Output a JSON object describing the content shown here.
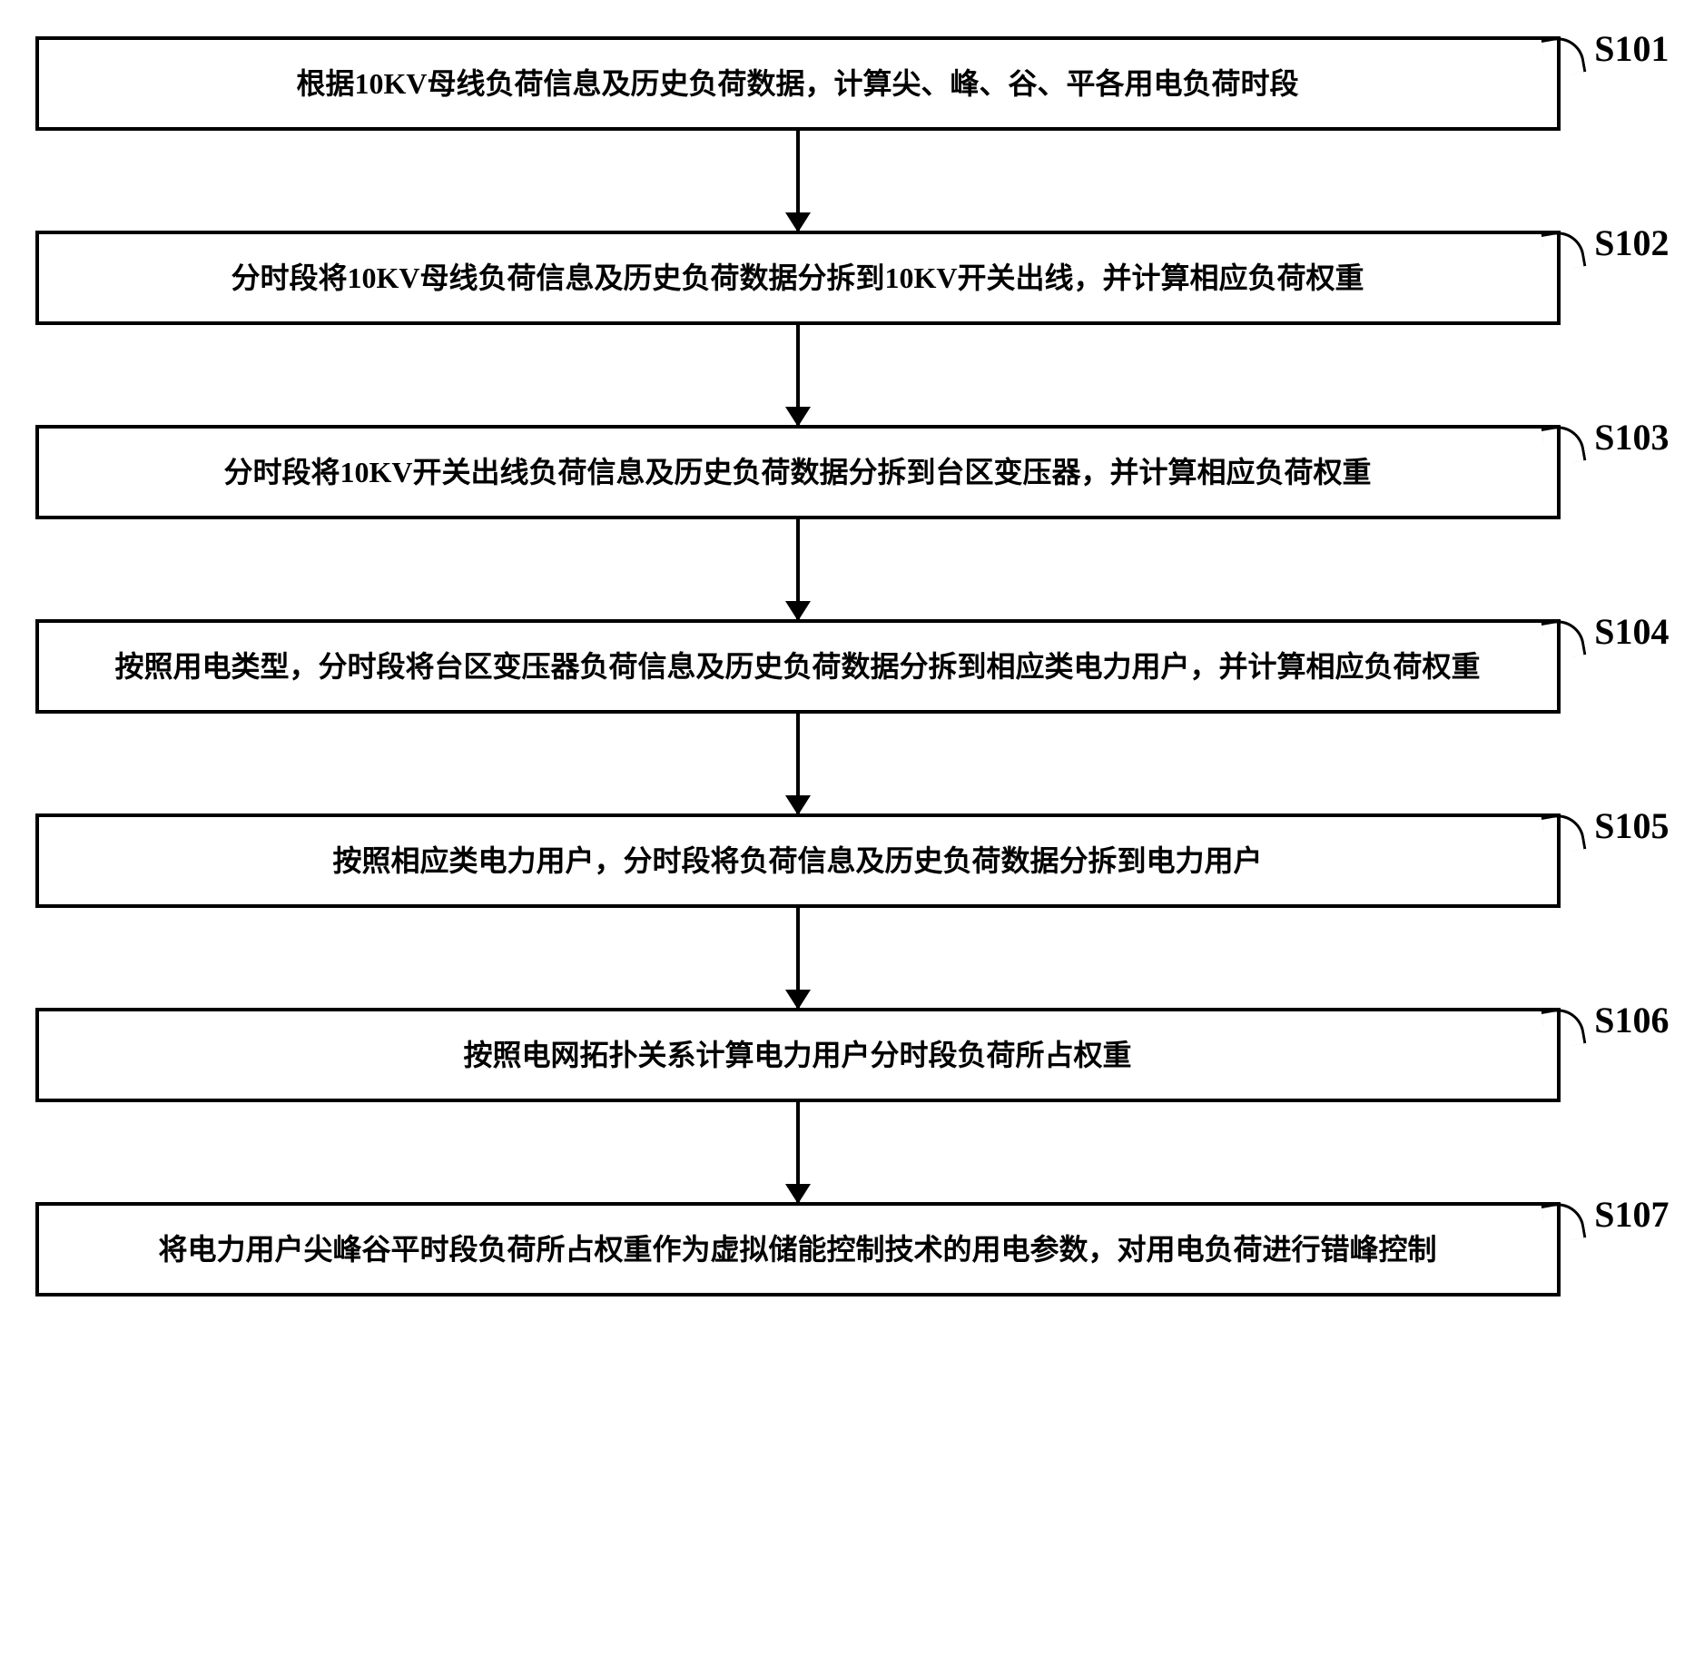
{
  "diagram": {
    "type": "flowchart",
    "direction": "vertical",
    "box_border_color": "#000000",
    "box_border_width": 4,
    "box_bg_color": "#ffffff",
    "text_color": "#000000",
    "font_size": 32,
    "label_font_size": 40,
    "font_weight": "bold",
    "arrow_color": "#000000",
    "arrow_width": 4,
    "arrow_gap_height": 110,
    "steps": [
      {
        "label": "S101",
        "text": "根据10KV母线负荷信息及历史负荷数据，计算尖、峰、谷、平各用电负荷时段"
      },
      {
        "label": "S102",
        "text": "分时段将10KV母线负荷信息及历史负荷数据分拆到10KV开关出线，并计算相应负荷权重"
      },
      {
        "label": "S103",
        "text": "分时段将10KV开关出线负荷信息及历史负荷数据分拆到台区变压器，并计算相应负荷权重"
      },
      {
        "label": "S104",
        "text": "按照用电类型，分时段将台区变压器负荷信息及历史负荷数据分拆到相应类电力用户，并计算相应负荷权重"
      },
      {
        "label": "S105",
        "text": "按照相应类电力用户，分时段将负荷信息及历史负荷数据分拆到电力用户"
      },
      {
        "label": "S106",
        "text": "按照电网拓扑关系计算电力用户分时段负荷所占权重"
      },
      {
        "label": "S107",
        "text": "将电力用户尖峰谷平时段负荷所占权重作为虚拟储能控制技术的用电参数，对用电负荷进行错峰控制"
      }
    ]
  }
}
